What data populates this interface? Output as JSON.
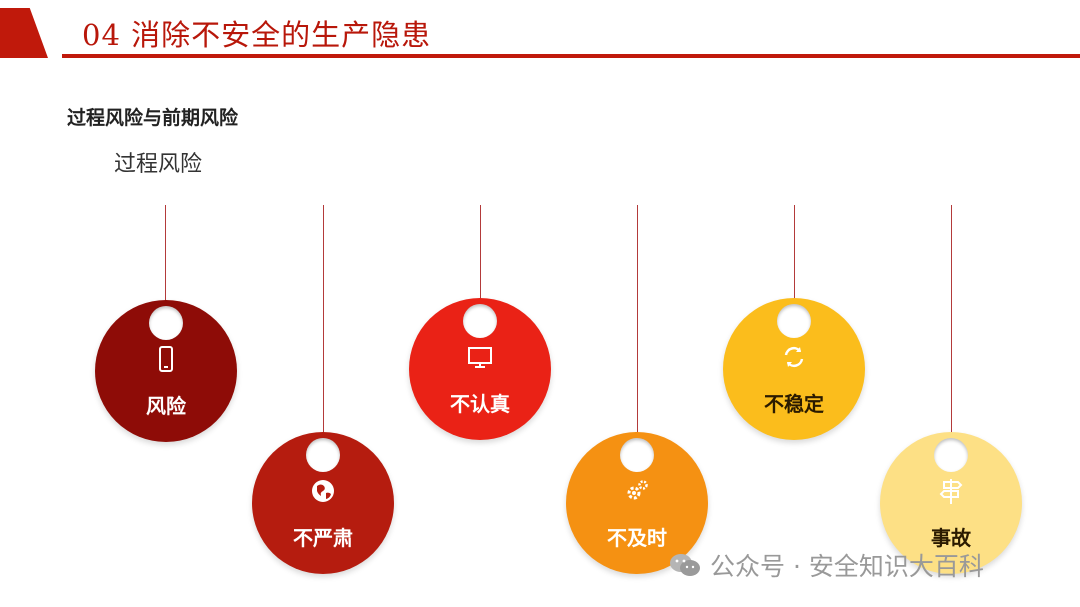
{
  "header": {
    "title": "04  消除不安全的生产隐患",
    "accent_color": "#c0190b"
  },
  "subtitle": "过程风险与前期风险",
  "section_label": "过程风险",
  "tags": [
    {
      "label": "风险",
      "icon": "phone-icon",
      "color": "#8e0c07",
      "text_color": "#ffffff"
    },
    {
      "label": "不严肃",
      "icon": "globe-icon",
      "color": "#b51c0f",
      "text_color": "#ffffff"
    },
    {
      "label": "不认真",
      "icon": "monitor-icon",
      "color": "#ea2216",
      "text_color": "#ffffff"
    },
    {
      "label": "不及时",
      "icon": "gears-icon",
      "color": "#f59112",
      "text_color": "#ffffff"
    },
    {
      "label": "不稳定",
      "icon": "refresh-icon",
      "color": "#fbbd1c",
      "text_color": "#2a1a00"
    },
    {
      "label": "事故",
      "icon": "signpost-icon",
      "color": "#fde085",
      "text_color": "#2a1a00"
    }
  ],
  "watermark": {
    "text": "公众号 · 安全知识大百科",
    "icon": "wechat-icon"
  }
}
